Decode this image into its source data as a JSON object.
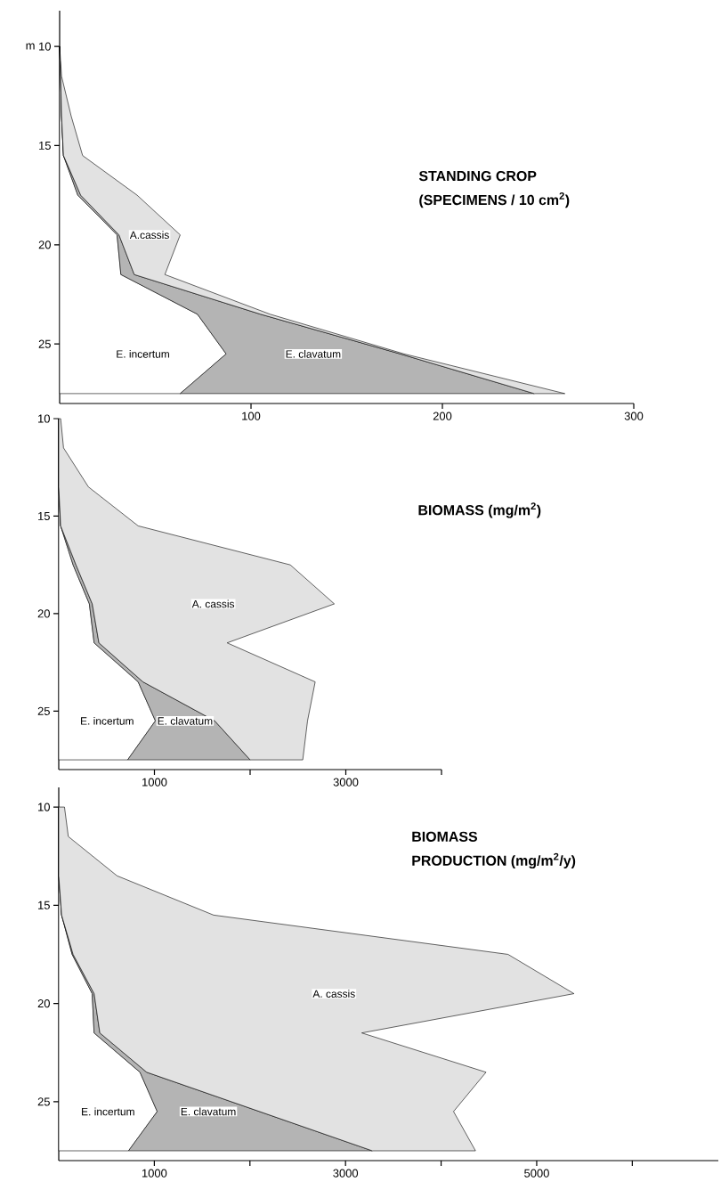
{
  "chart_data": [
    {
      "type": "area",
      "stacked": true,
      "orientation": "horizontal",
      "title": "STANDING CROP",
      "subtitle": "(SPECIMENS / 10 cm$^{2}$)",
      "ylabel": "m",
      "x": [
        10,
        11.5,
        13.5,
        15.5,
        17.5,
        19.5,
        21.5,
        23.5,
        25.5,
        27.5
      ],
      "series": [
        {
          "name": "E. incertum",
          "color": "#ffffff",
          "values": [
            0,
            0.5,
            1,
            2,
            9.5,
            30,
            32,
            72,
            87,
            63
          ]
        },
        {
          "name": "E. clavatum",
          "color": "#b4b4b4",
          "values": [
            0,
            0,
            0,
            0,
            1.5,
            1,
            7,
            33,
            91,
            185
          ]
        },
        {
          "name": "A.cassis",
          "color": "#e2e2e2",
          "values": [
            0,
            0.5,
            5,
            10,
            29.5,
            32,
            16,
            5,
            2,
            16
          ]
        }
      ],
      "xlim": [
        0,
        300
      ],
      "xticks": [
        100,
        200,
        300
      ],
      "ylim": [
        28,
        8.2
      ],
      "yticks": [
        10,
        15,
        20,
        25
      ]
    },
    {
      "type": "area",
      "stacked": true,
      "orientation": "horizontal",
      "title": "BIOMASS (mg/m$^{2}$)",
      "x": [
        10,
        11.5,
        13.5,
        15.5,
        17.5,
        19.5,
        21.5,
        23.5,
        25.5,
        27.5
      ],
      "series": [
        {
          "name": "E. incertum",
          "color": "#ffffff",
          "values": [
            0,
            0,
            0,
            20,
            150,
            320,
            370,
            830,
            1010,
            720
          ]
        },
        {
          "name": "E. clavatum",
          "color": "#b4b4b4",
          "values": [
            0,
            0,
            0,
            0,
            30,
            30,
            50,
            50,
            620,
            1280
          ]
        },
        {
          "name": "A. cassis",
          "color": "#e2e2e2",
          "values": [
            20,
            50,
            310,
            810,
            2240,
            2530,
            1340,
            1800,
            970,
            550
          ]
        }
      ],
      "xlim": [
        0,
        4000
      ],
      "xticks": [
        {
          "value": 1000,
          "label": "1000"
        },
        {
          "value": 2000,
          "label": null
        },
        {
          "value": 3000,
          "label": "3000"
        },
        {
          "value": 4000,
          "label": null
        }
      ],
      "ylim": [
        28,
        10
      ],
      "yticks": [
        10,
        15,
        20,
        25
      ]
    },
    {
      "type": "area",
      "stacked": true,
      "orientation": "horizontal",
      "title": "BIOMASS",
      "subtitle": "PRODUCTION (mg/m$^{2}$/y)",
      "x": [
        10,
        11.5,
        13.5,
        15.5,
        17.5,
        19.5,
        21.5,
        23.5,
        25.5,
        27.5
      ],
      "series": [
        {
          "name": "E. incertum",
          "color": "#ffffff",
          "values": [
            0,
            0,
            0,
            30,
            140,
            350,
            370,
            850,
            1030,
            730
          ]
        },
        {
          "name": "E. clavatum",
          "color": "#b4b4b4",
          "values": [
            0,
            0,
            0,
            0,
            10,
            20,
            60,
            70,
            1070,
            2550
          ]
        },
        {
          "name": "A. cassis",
          "color": "#e2e2e2",
          "values": [
            60,
            100,
            610,
            1590,
            4550,
            5020,
            2740,
            3550,
            2030,
            1080
          ]
        }
      ],
      "xlim": [
        0,
        6900
      ],
      "xticks": [
        {
          "value": 1000,
          "label": "1000"
        },
        {
          "value": 2000,
          "label": null
        },
        {
          "value": 3000,
          "label": "3000"
        },
        {
          "value": 4000,
          "label": null
        },
        {
          "value": 5000,
          "label": "5000"
        },
        {
          "value": 6000,
          "label": null
        }
      ],
      "ylim": [
        28,
        9
      ],
      "yticks": [
        10,
        15,
        20,
        25
      ]
    }
  ]
}
